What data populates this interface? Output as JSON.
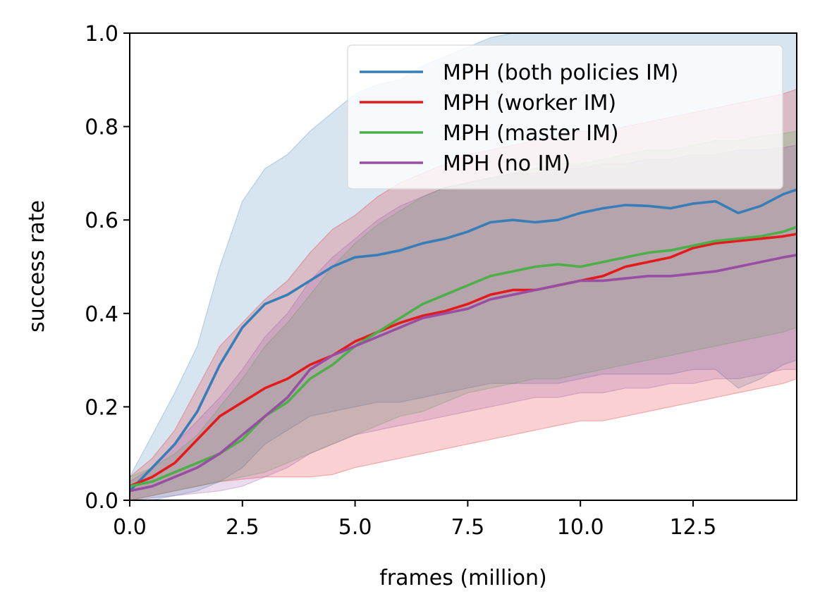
{
  "chart_data": {
    "type": "line",
    "title": "",
    "xlabel": "frames (million)",
    "ylabel": "success rate",
    "xlim": [
      0,
      14.8
    ],
    "ylim": [
      0,
      1.0
    ],
    "xticks": [
      0,
      2.5,
      5,
      7.5,
      10,
      12.5
    ],
    "xtick_labels": [
      "0.0",
      "2.5",
      "5.0",
      "7.5",
      "10.0",
      "12.5"
    ],
    "yticks": [
      0,
      0.2,
      0.4,
      0.6,
      0.8,
      1.0
    ],
    "ytick_labels": [
      "0.0",
      "0.2",
      "0.4",
      "0.6",
      "0.8",
      "1.0"
    ],
    "grid": false,
    "legend_position": "top-right",
    "x": [
      0,
      0.5,
      1,
      1.5,
      2,
      2.5,
      3,
      3.5,
      4,
      4.5,
      5,
      5.5,
      6,
      6.5,
      7,
      7.5,
      8,
      8.5,
      9,
      9.5,
      10,
      10.5,
      11,
      11.5,
      12,
      12.5,
      13,
      13.5,
      14,
      14.5,
      14.8
    ],
    "series": [
      {
        "name": "MPH (both policies IM)",
        "color": "#377eb8",
        "values": [
          0.02,
          0.07,
          0.12,
          0.19,
          0.29,
          0.37,
          0.42,
          0.44,
          0.47,
          0.5,
          0.52,
          0.525,
          0.535,
          0.55,
          0.56,
          0.575,
          0.595,
          0.6,
          0.595,
          0.6,
          0.615,
          0.625,
          0.632,
          0.63,
          0.625,
          0.635,
          0.64,
          0.615,
          0.63,
          0.655,
          0.665
        ],
        "upper": [
          0.05,
          0.14,
          0.23,
          0.33,
          0.5,
          0.64,
          0.71,
          0.74,
          0.79,
          0.83,
          0.87,
          0.89,
          0.9,
          0.93,
          0.95,
          0.97,
          0.99,
          1.0,
          1.0,
          1.0,
          1.0,
          1.0,
          1.0,
          1.0,
          1.0,
          1.0,
          1.0,
          1.0,
          1.0,
          1.0,
          1.0
        ],
        "lower": [
          0.0,
          0.0,
          0.01,
          0.02,
          0.04,
          0.07,
          0.12,
          0.15,
          0.18,
          0.19,
          0.2,
          0.21,
          0.21,
          0.22,
          0.23,
          0.24,
          0.25,
          0.25,
          0.25,
          0.25,
          0.26,
          0.27,
          0.27,
          0.27,
          0.27,
          0.28,
          0.28,
          0.24,
          0.26,
          0.29,
          0.3
        ]
      },
      {
        "name": "MPH (worker IM)",
        "color": "#e41a1c",
        "values": [
          0.03,
          0.05,
          0.08,
          0.13,
          0.18,
          0.21,
          0.24,
          0.26,
          0.29,
          0.31,
          0.34,
          0.36,
          0.38,
          0.395,
          0.405,
          0.42,
          0.44,
          0.45,
          0.45,
          0.46,
          0.47,
          0.48,
          0.5,
          0.51,
          0.52,
          0.54,
          0.55,
          0.555,
          0.56,
          0.565,
          0.57
        ],
        "upper": [
          0.05,
          0.09,
          0.15,
          0.24,
          0.33,
          0.38,
          0.43,
          0.47,
          0.53,
          0.58,
          0.61,
          0.65,
          0.68,
          0.7,
          0.72,
          0.74,
          0.75,
          0.76,
          0.77,
          0.78,
          0.79,
          0.79,
          0.8,
          0.81,
          0.82,
          0.83,
          0.84,
          0.85,
          0.86,
          0.87,
          0.88
        ],
        "lower": [
          0.0,
          0.01,
          0.02,
          0.03,
          0.04,
          0.045,
          0.05,
          0.05,
          0.05,
          0.055,
          0.07,
          0.08,
          0.09,
          0.1,
          0.11,
          0.12,
          0.13,
          0.14,
          0.15,
          0.16,
          0.17,
          0.17,
          0.18,
          0.19,
          0.2,
          0.21,
          0.22,
          0.23,
          0.24,
          0.25,
          0.26
        ]
      },
      {
        "name": "MPH (master IM)",
        "color": "#4daf4a",
        "values": [
          0.03,
          0.04,
          0.06,
          0.08,
          0.1,
          0.13,
          0.18,
          0.21,
          0.26,
          0.29,
          0.33,
          0.36,
          0.39,
          0.42,
          0.44,
          0.46,
          0.48,
          0.49,
          0.5,
          0.505,
          0.5,
          0.51,
          0.52,
          0.53,
          0.535,
          0.545,
          0.555,
          0.56,
          0.565,
          0.575,
          0.585
        ],
        "upper": [
          0.05,
          0.07,
          0.1,
          0.14,
          0.2,
          0.26,
          0.33,
          0.38,
          0.44,
          0.5,
          0.55,
          0.59,
          0.62,
          0.65,
          0.67,
          0.68,
          0.69,
          0.7,
          0.71,
          0.72,
          0.72,
          0.73,
          0.74,
          0.75,
          0.75,
          0.76,
          0.77,
          0.77,
          0.78,
          0.785,
          0.79
        ],
        "lower": [
          0.0,
          0.01,
          0.02,
          0.03,
          0.04,
          0.05,
          0.06,
          0.08,
          0.1,
          0.12,
          0.14,
          0.16,
          0.18,
          0.19,
          0.21,
          0.23,
          0.24,
          0.25,
          0.26,
          0.26,
          0.27,
          0.28,
          0.29,
          0.3,
          0.31,
          0.32,
          0.33,
          0.34,
          0.35,
          0.36,
          0.37
        ]
      },
      {
        "name": "MPH (no IM)",
        "color": "#984ea3",
        "values": [
          0.02,
          0.03,
          0.05,
          0.07,
          0.1,
          0.14,
          0.18,
          0.22,
          0.28,
          0.31,
          0.33,
          0.35,
          0.37,
          0.39,
          0.4,
          0.41,
          0.43,
          0.44,
          0.45,
          0.46,
          0.47,
          0.47,
          0.475,
          0.48,
          0.48,
          0.485,
          0.49,
          0.5,
          0.51,
          0.52,
          0.525
        ],
        "upper": [
          0.04,
          0.07,
          0.12,
          0.17,
          0.22,
          0.28,
          0.35,
          0.4,
          0.47,
          0.52,
          0.56,
          0.6,
          0.63,
          0.65,
          0.67,
          0.68,
          0.69,
          0.7,
          0.7,
          0.71,
          0.71,
          0.72,
          0.72,
          0.73,
          0.73,
          0.74,
          0.74,
          0.75,
          0.75,
          0.755,
          0.76
        ],
        "lower": [
          0.0,
          0.005,
          0.01,
          0.015,
          0.02,
          0.03,
          0.05,
          0.07,
          0.1,
          0.12,
          0.14,
          0.15,
          0.16,
          0.17,
          0.18,
          0.19,
          0.2,
          0.21,
          0.22,
          0.22,
          0.23,
          0.23,
          0.24,
          0.24,
          0.25,
          0.25,
          0.26,
          0.26,
          0.27,
          0.28,
          0.28
        ]
      }
    ]
  }
}
